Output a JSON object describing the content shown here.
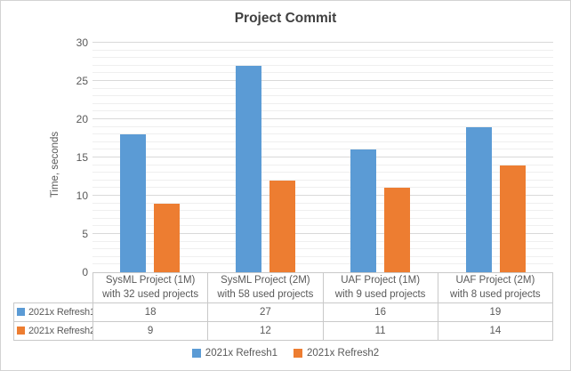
{
  "chart_data": {
    "type": "bar",
    "title": "Project Commit",
    "ylabel": "Time, seconds",
    "categories": [
      "SysML Project (1M)\nwith 32 used projects",
      "SysML Project (2M)\nwith 58 used projects",
      "UAF Project (1M)\nwith 9 used projects",
      "UAF Project (2M)\nwith 8 used projects"
    ],
    "series": [
      {
        "name": "2021x Refresh1",
        "color": "#5B9BD5",
        "values": [
          18,
          27,
          16,
          19
        ]
      },
      {
        "name": "2021x Refresh2",
        "color": "#ED7D31",
        "values": [
          9,
          12,
          11,
          14
        ]
      }
    ],
    "ylim": [
      0,
      30
    ],
    "ytick_step": 5,
    "minor_grid_step": 1,
    "grid": true,
    "legend_position": "bottom",
    "data_table_shown": true
  },
  "colors": {
    "refresh1_blue": "#5B9BD5",
    "refresh2_orange": "#ED7D31",
    "major_gridline": "#D9D9D9",
    "minor_gridline": "#EFEFEF",
    "table_border": "#C9C9C9",
    "axis_text": "#595959",
    "title_text": "#404040",
    "frame_border": "#D3D3D3"
  }
}
